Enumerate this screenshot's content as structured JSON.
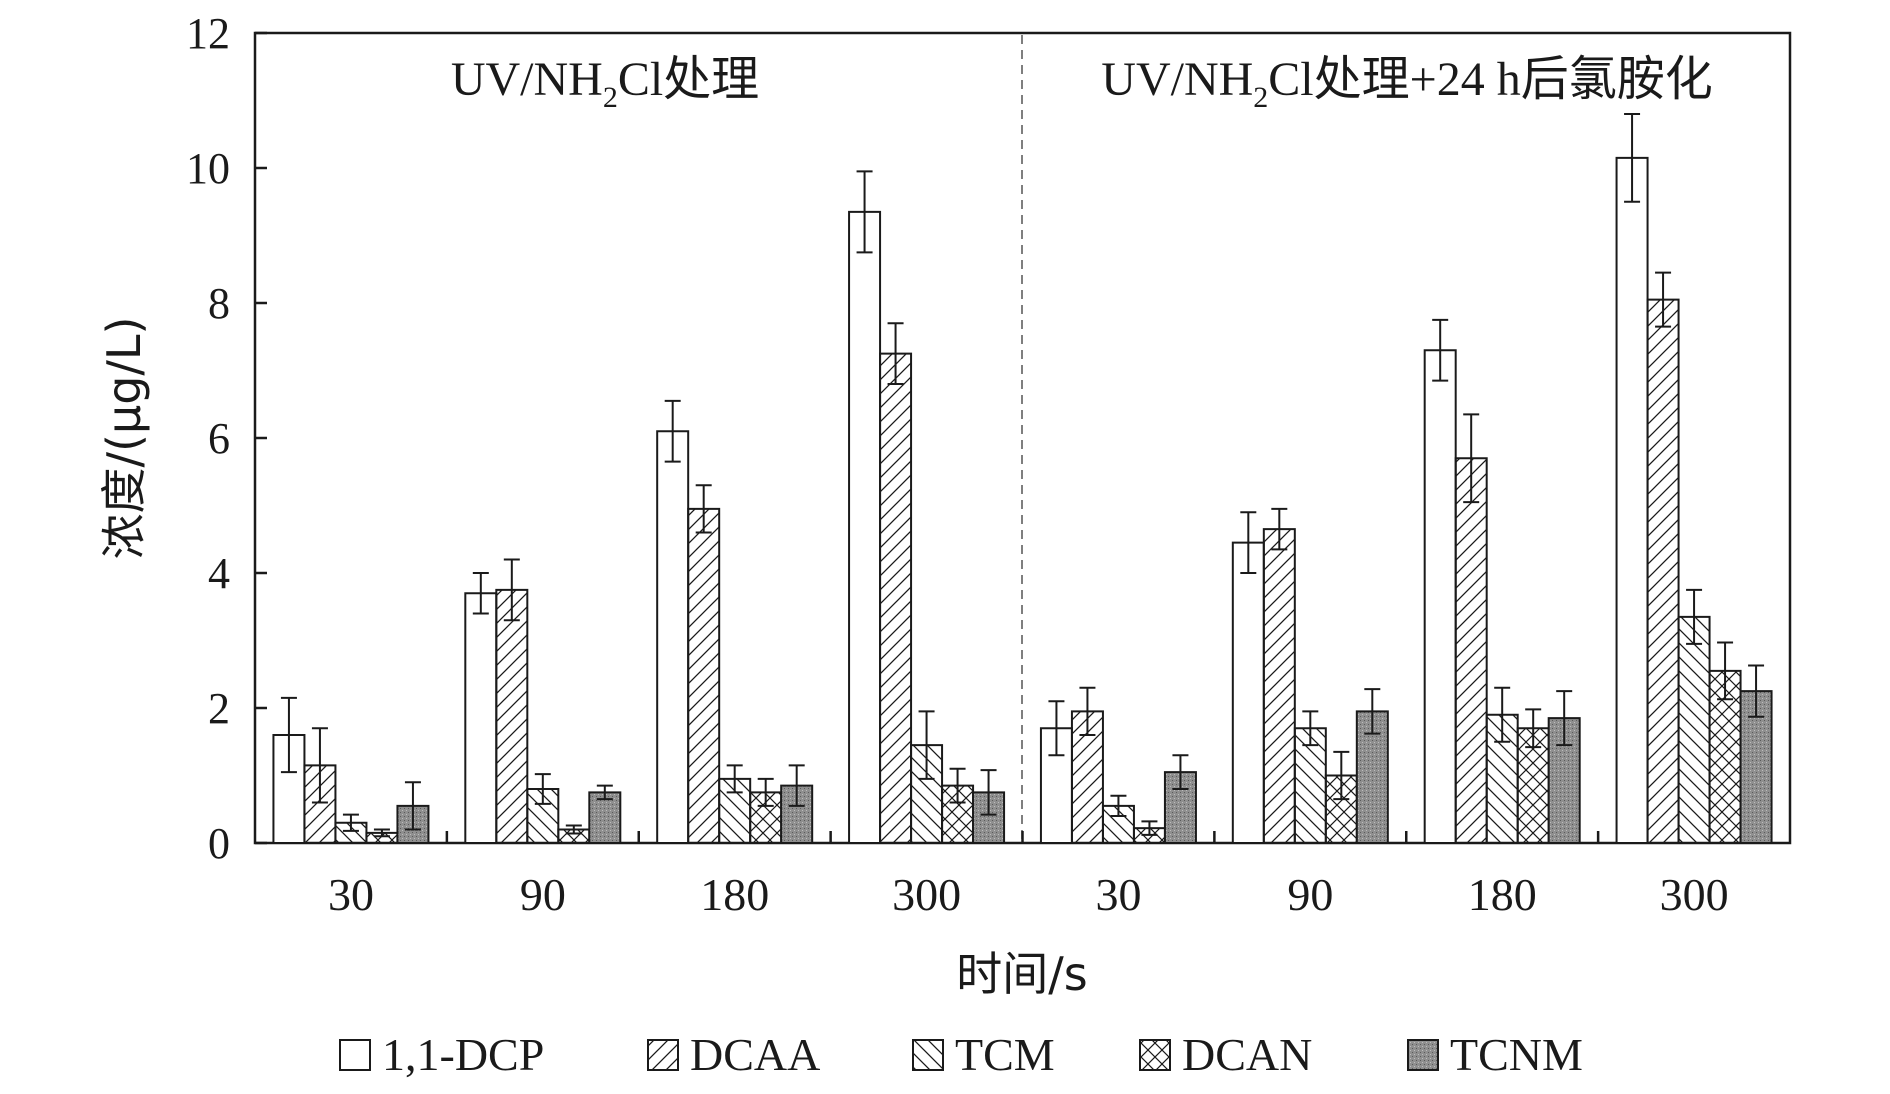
{
  "chart_data": {
    "type": "bar",
    "ylabel": "浓度/(μg/L)",
    "xlabel": "时间/s",
    "ylim": [
      0,
      12
    ],
    "yticks": [
      0,
      2,
      4,
      6,
      8,
      10,
      12
    ],
    "grid": false,
    "legend_position": "bottom",
    "error_bars": true,
    "panels": [
      {
        "label_parts": [
          "UV/NH",
          "2",
          "Cl处理"
        ],
        "categories": [
          "30",
          "90",
          "180",
          "300"
        ],
        "series": [
          {
            "name": "1,1-DCP",
            "values": [
              1.6,
              3.7,
              6.1,
              9.35
            ],
            "errors": [
              0.55,
              0.3,
              0.45,
              0.6
            ]
          },
          {
            "name": "DCAA",
            "values": [
              1.15,
              3.75,
              4.95,
              7.25
            ],
            "errors": [
              0.55,
              0.45,
              0.35,
              0.45
            ]
          },
          {
            "name": "TCM",
            "values": [
              0.3,
              0.8,
              0.95,
              1.45
            ],
            "errors": [
              0.12,
              0.22,
              0.2,
              0.5
            ]
          },
          {
            "name": "DCAN",
            "values": [
              0.15,
              0.2,
              0.75,
              0.85
            ],
            "errors": [
              0.05,
              0.06,
              0.2,
              0.25
            ]
          },
          {
            "name": "TCNM",
            "values": [
              0.55,
              0.75,
              0.85,
              0.75
            ],
            "errors": [
              0.35,
              0.1,
              0.3,
              0.33
            ]
          }
        ]
      },
      {
        "label_parts": [
          "UV/NH",
          "2",
          "Cl处理+24 h后氯胺化"
        ],
        "categories": [
          "30",
          "90",
          "180",
          "300"
        ],
        "series": [
          {
            "name": "1,1-DCP",
            "values": [
              1.7,
              4.45,
              7.3,
              10.15
            ],
            "errors": [
              0.4,
              0.45,
              0.45,
              0.65
            ]
          },
          {
            "name": "DCAA",
            "values": [
              1.95,
              4.65,
              5.7,
              8.05
            ],
            "errors": [
              0.35,
              0.3,
              0.65,
              0.4
            ]
          },
          {
            "name": "TCM",
            "values": [
              0.55,
              1.7,
              1.9,
              3.35
            ],
            "errors": [
              0.15,
              0.25,
              0.4,
              0.4
            ]
          },
          {
            "name": "DCAN",
            "values": [
              0.22,
              1.0,
              1.7,
              2.55
            ],
            "errors": [
              0.1,
              0.35,
              0.28,
              0.42
            ]
          },
          {
            "name": "TCNM",
            "values": [
              1.05,
              1.95,
              1.85,
              2.25
            ],
            "errors": [
              0.25,
              0.33,
              0.4,
              0.38
            ]
          }
        ]
      }
    ],
    "legend": [
      {
        "name": "1,1-DCP",
        "pattern": "blank"
      },
      {
        "name": "DCAA",
        "pattern": "forward-hatch"
      },
      {
        "name": "TCM",
        "pattern": "back-hatch"
      },
      {
        "name": "DCAN",
        "pattern": "cross-hatch"
      },
      {
        "name": "TCNM",
        "pattern": "gray-fill"
      }
    ],
    "colors": {
      "stroke": "#1a1a1a",
      "fill": "#ffffff",
      "gray": "#9a9a9a"
    }
  }
}
